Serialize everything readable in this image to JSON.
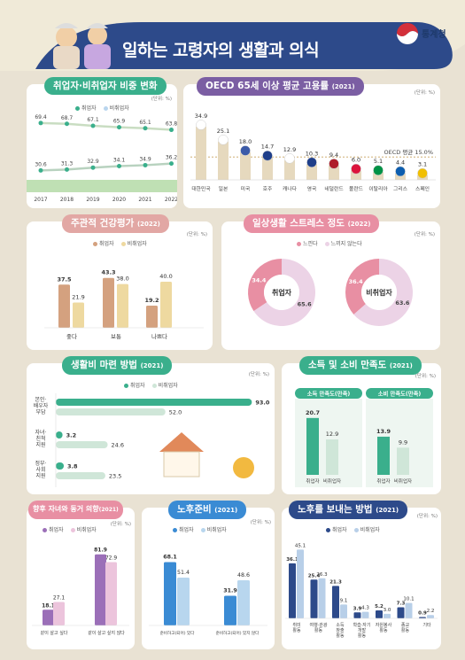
{
  "header": {
    "title": "일하는 고령자의 생활과 의식",
    "agency": "통계청"
  },
  "colors": {
    "employed": "#3aaf8c",
    "employed_light": "#cfe6d8",
    "unemployed": "#a6c7ec",
    "pink": "#e8b8c8",
    "purple": "#7b5ea3",
    "bar_tan": "#dccaa8",
    "banner": "#2d4a8a"
  },
  "chart_data": [
    {
      "id": "ratio",
      "type": "line",
      "title": "취업자·비취업자 비중 변화",
      "unit": "(단위: %)",
      "legend": [
        "취업자",
        "비취업자"
      ],
      "x": [
        "2017",
        "2018",
        "2019",
        "2020",
        "2021",
        "2022"
      ],
      "series": [
        {
          "name": "비취업자",
          "values": [
            69.4,
            68.7,
            67.1,
            65.9,
            65.1,
            63.8
          ]
        },
        {
          "name": "취업자",
          "values": [
            30.6,
            31.3,
            32.9,
            34.1,
            34.9,
            36.2
          ]
        }
      ]
    },
    {
      "id": "oecd",
      "type": "bar",
      "title": "OECD 65세 이상 평균 고용률",
      "title_year": "(2021)",
      "unit": "(단위: %)",
      "categories": [
        "대한민국",
        "일본",
        "미국",
        "호주",
        "캐나다",
        "영국",
        "네덜란드",
        "폴란드",
        "이탈리아",
        "그리스",
        "스페인"
      ],
      "values": [
        34.9,
        25.1,
        18.0,
        14.7,
        12.9,
        10.3,
        9.4,
        6.0,
        5.1,
        4.4,
        3.1
      ],
      "oecd_avg_label": "OECD 평균 15.0%",
      "oecd_avg": 15.0
    },
    {
      "id": "health",
      "type": "bar",
      "title": "주관적 건강평가",
      "title_year": "(2022)",
      "unit": "(단위: %)",
      "legend": [
        "취업자",
        "비취업자"
      ],
      "categories": [
        "좋다",
        "보통",
        "나쁘다"
      ],
      "series": [
        {
          "name": "취업자",
          "values": [
            37.5,
            43.3,
            19.2
          ]
        },
        {
          "name": "비취업자",
          "values": [
            21.9,
            38.0,
            40.0
          ]
        }
      ]
    },
    {
      "id": "stress",
      "type": "pie",
      "title": "일상생활 스트레스 정도",
      "title_year": "(2022)",
      "unit": "(단위: %)",
      "legend": [
        "느낀다",
        "느끼지 않는다"
      ],
      "pies": [
        {
          "name": "취업자",
          "values": [
            34.4,
            65.6
          ]
        },
        {
          "name": "비취업자",
          "values": [
            36.4,
            63.6
          ]
        }
      ]
    },
    {
      "id": "living",
      "type": "bar",
      "title": "생활비 마련 방법",
      "title_year": "(2021)",
      "unit": "(단위: %)",
      "legend": [
        "취업자",
        "비취업자"
      ],
      "categories": [
        "본인· 배우자 부담",
        "자녀· 친척 지원",
        "정부· 사회 지원"
      ],
      "series": [
        {
          "name": "취업자",
          "values": [
            93.0,
            3.2,
            3.8
          ]
        },
        {
          "name": "비취업자",
          "values": [
            52.0,
            24.6,
            23.5
          ]
        }
      ]
    },
    {
      "id": "satisfaction",
      "type": "bar",
      "title": "소득 및 소비 만족도",
      "title_year": "(2021)",
      "unit": "(단위: %)",
      "groups": [
        {
          "name": "소득 만족도(만족)",
          "categories": [
            "취업자",
            "비취업자"
          ],
          "values": [
            20.7,
            12.9
          ]
        },
        {
          "name": "소비 만족도(만족)",
          "categories": [
            "취업자",
            "비취업자"
          ],
          "values": [
            13.9,
            9.9
          ]
        }
      ]
    },
    {
      "id": "cohabit",
      "type": "bar",
      "title": "향후 자녀와 동거 의향",
      "title_year": "(2021)",
      "unit": "(단위: %)",
      "legend": [
        "취업자",
        "비취업자"
      ],
      "categories": [
        "같이 살고 싶다",
        "같이 살고 싶지 않다"
      ],
      "series": [
        {
          "name": "취업자",
          "values": [
            18.1,
            81.9
          ]
        },
        {
          "name": "비취업자",
          "values": [
            27.1,
            72.9
          ]
        }
      ]
    },
    {
      "id": "retire",
      "type": "bar",
      "title": "노후준비",
      "title_year": "(2021)",
      "unit": "(단위: %)",
      "legend": [
        "취업자",
        "비취업자"
      ],
      "categories": [
        "준비하고(되어) 있다",
        "준비하고(되어) 있지 않다"
      ],
      "series": [
        {
          "name": "취업자",
          "values": [
            68.1,
            31.9
          ]
        },
        {
          "name": "비취업자",
          "values": [
            51.4,
            48.6
          ]
        }
      ]
    },
    {
      "id": "oldage",
      "type": "bar",
      "title": "노후를 보내는 방법",
      "title_year": "(2021)",
      "unit": "(단위: %)",
      "legend": [
        "취업자",
        "비취업자"
      ],
      "categories": [
        "취미 활동",
        "여행·관광 활동",
        "소득 창출 활동",
        "학습·자기 개발 활동",
        "자원봉사 활동",
        "종교 활동",
        "기타"
      ],
      "series": [
        {
          "name": "취업자",
          "values": [
            36.1,
            25.4,
            21.3,
            3.9,
            5.2,
            7.3,
            0.9
          ]
        },
        {
          "name": "비취업자",
          "values": [
            45.1,
            26.3,
            9.1,
            4.3,
            3.0,
            10.1,
            2.2
          ]
        }
      ]
    }
  ]
}
